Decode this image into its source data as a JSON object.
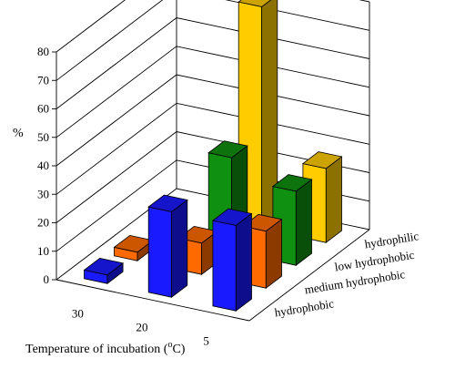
{
  "chart_data": {
    "type": "bar",
    "subtype": "3d-grouped",
    "title": "",
    "xlabel": "Temperature of incubation (°C)",
    "xlabel_text": "Temperature of incubation (",
    "xlabel_deg": "o",
    "xlabel_unit": "C)",
    "ylabel": "%",
    "zlabel": "",
    "ylim": [
      0,
      80
    ],
    "yticks": [
      "0",
      "10",
      "20",
      "30",
      "40",
      "50",
      "60",
      "70",
      "80"
    ],
    "grid": true,
    "categories": [
      "30",
      "20",
      "5"
    ],
    "series": [
      {
        "name": "hydrophobic",
        "color": "#1a1aff",
        "values": [
          3,
          30,
          30
        ]
      },
      {
        "name": "medium hydrophobic",
        "color": "#ff6a00",
        "values": [
          3,
          11,
          20
        ]
      },
      {
        "name": "low hydrophobic",
        "color": "#109010",
        "values": [
          null,
          33,
          26
        ]
      },
      {
        "name": "hydrophilic",
        "color": "#ffcc00",
        "values": [
          null,
          78,
          26
        ]
      }
    ]
  }
}
